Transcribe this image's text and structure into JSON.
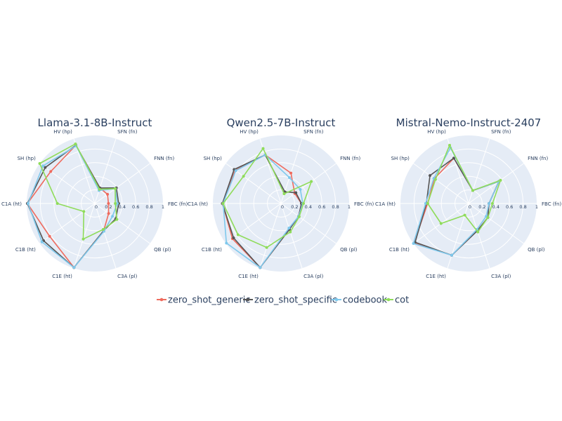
{
  "chart_data": {
    "type": "radar",
    "radial_range": [
      0,
      1
    ],
    "radial_ticks": [
      "0",
      "0.2",
      "0.4",
      "0.6",
      "0.8",
      "1"
    ],
    "axes": [
      "FBC (fn)",
      "FNN (fn)",
      "SFN (fn)",
      "HV (hp)",
      "SH (hp)",
      "C1A (ht)",
      "C1B (ht)",
      "C1E (ht)",
      "C3A (pl)",
      "QB (pl)"
    ],
    "colors": {
      "background": "#e5ecf6",
      "grid": "#ffffff",
      "text": "#2a3f5f"
    },
    "legend": [
      {
        "name": "zero_shot_generic",
        "color": "#ef6b5e"
      },
      {
        "name": "zero_shot_specific",
        "color": "#555555"
      },
      {
        "name": "codebook",
        "color": "#7ec8ec"
      },
      {
        "name": "cot",
        "color": "#8fdc5a"
      }
    ],
    "panels": [
      {
        "title": "Llama-3.1-8B-Instruct",
        "series": [
          {
            "name": "zero_shot_generic",
            "values": [
              0.2,
              0.23,
              0.24,
              0.9,
              0.8,
              0.99,
              0.82,
              0.99,
              0.42,
              0.25
            ]
          },
          {
            "name": "zero_shot_specific",
            "values": [
              0.35,
              0.39,
              0.24,
              0.9,
              0.9,
              0.99,
              0.93,
              0.99,
              0.42,
              0.38
            ]
          },
          {
            "name": "codebook",
            "values": [
              0.33,
              0.37,
              0.2,
              0.89,
              0.94,
              0.98,
              0.96,
              0.99,
              0.43,
              0.32
            ]
          },
          {
            "name": "cot",
            "values": [
              0.3,
              0.37,
              0.22,
              0.92,
              1.0,
              0.55,
              0.2,
              0.55,
              0.4,
              0.4
            ]
          }
        ]
      },
      {
        "title": "Qwen2.5-7B-Instruct",
        "series": [
          {
            "name": "zero_shot_generic",
            "values": [
              0.3,
              0.25,
              0.47,
              0.75,
              0.83,
              0.86,
              0.88,
              0.99,
              0.4,
              0.32
            ]
          },
          {
            "name": "zero_shot_specific",
            "values": [
              0.3,
              0.27,
              0.18,
              0.75,
              0.85,
              0.86,
              0.86,
              0.99,
              0.4,
              0.32
            ]
          },
          {
            "name": "codebook",
            "values": [
              0.32,
              0.35,
              0.4,
              0.75,
              0.82,
              0.85,
              0.99,
              0.99,
              0.38,
              0.32
            ]
          },
          {
            "name": "cot",
            "values": [
              0.33,
              0.55,
              0.15,
              0.85,
              0.68,
              0.85,
              0.78,
              0.68,
              0.44,
              0.33
            ]
          }
        ]
      },
      {
        "title": "Mistral-Nemo-Instruct-2407",
        "series": [
          {
            "name": "zero_shot_generic",
            "values": [
              0.3,
              0.55,
              0.2,
              0.7,
              0.62,
              0.6,
              0.99,
              0.8,
              0.42,
              0.35
            ]
          },
          {
            "name": "zero_shot_specific",
            "values": [
              0.3,
              0.55,
              0.2,
              0.7,
              0.7,
              0.62,
              0.97,
              0.8,
              0.42,
              0.35
            ]
          },
          {
            "name": "codebook",
            "values": [
              0.3,
              0.55,
              0.2,
              0.86,
              0.63,
              0.63,
              1.0,
              0.8,
              0.4,
              0.32
            ]
          },
          {
            "name": "cot",
            "values": [
              0.35,
              0.58,
              0.2,
              0.9,
              0.6,
              0.6,
              0.5,
              0.18,
              0.44,
              0.35
            ]
          }
        ]
      }
    ]
  }
}
